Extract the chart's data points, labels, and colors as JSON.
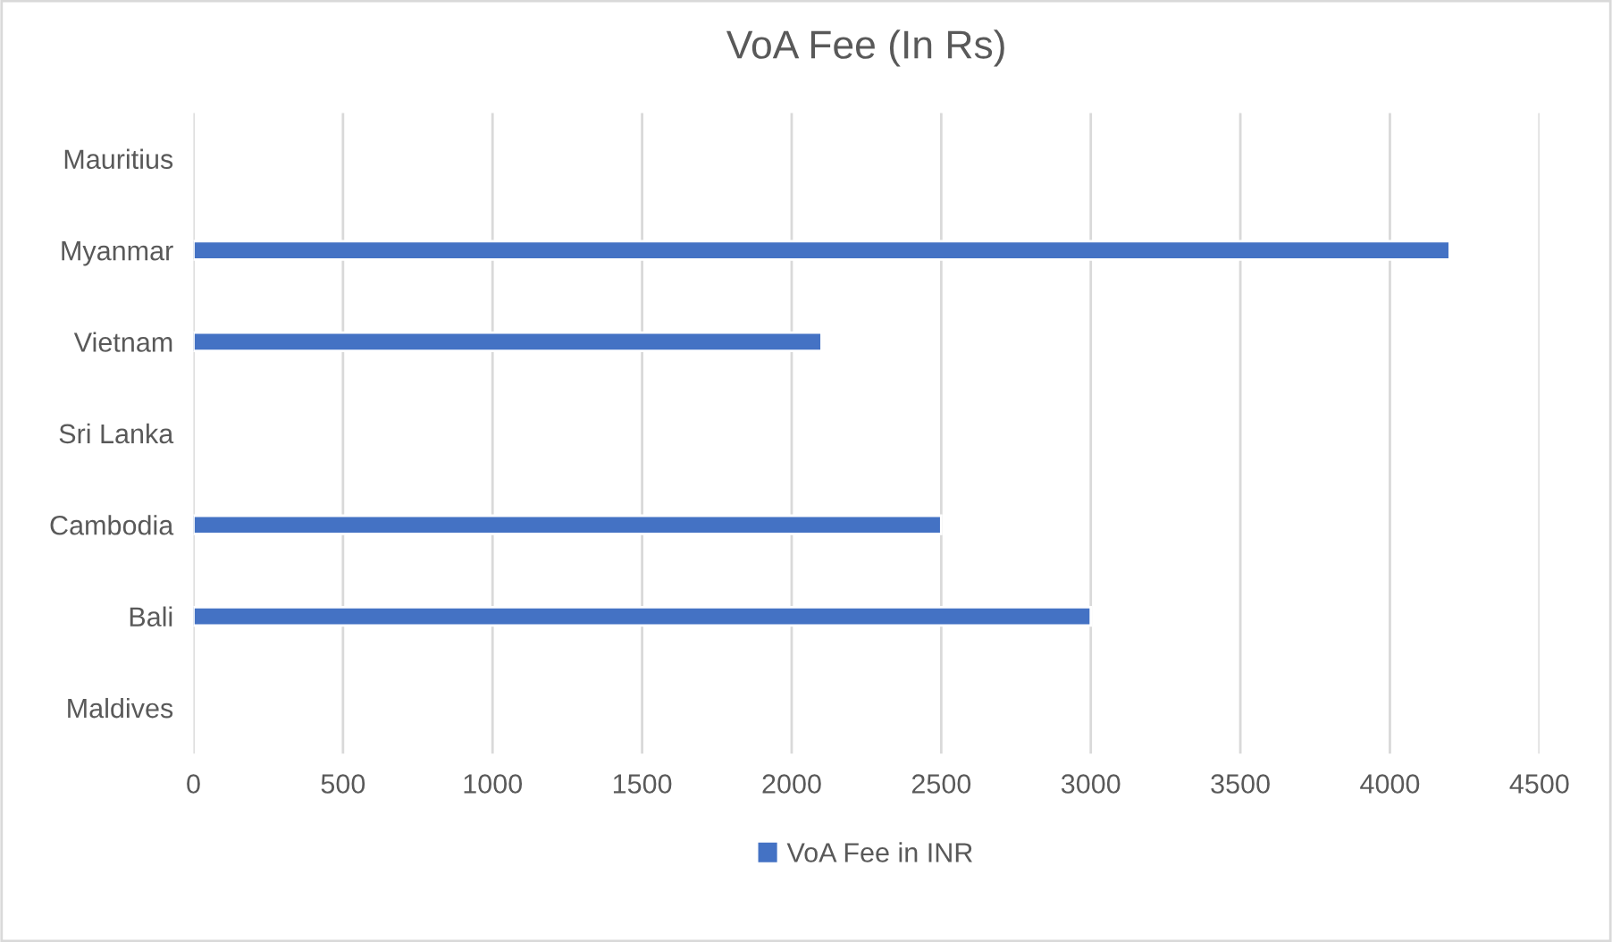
{
  "chart_data": {
    "type": "bar",
    "orientation": "horizontal",
    "title": "VoA Fee (In Rs)",
    "categories": [
      "Mauritius",
      "Myanmar",
      "Vietnam",
      "Sri Lanka",
      "Cambodia",
      "Bali",
      "Maldives"
    ],
    "series": [
      {
        "name": "VoA Fee in INR",
        "color": "#4472c4",
        "values": [
          null,
          4200,
          2100,
          null,
          2500,
          3000,
          null
        ]
      }
    ],
    "xlim": [
      0,
      4500
    ],
    "xticks": [
      0,
      500,
      1000,
      1500,
      2000,
      2500,
      3000,
      3500,
      4000,
      4500
    ],
    "grid": "x",
    "legend": "bottom"
  }
}
